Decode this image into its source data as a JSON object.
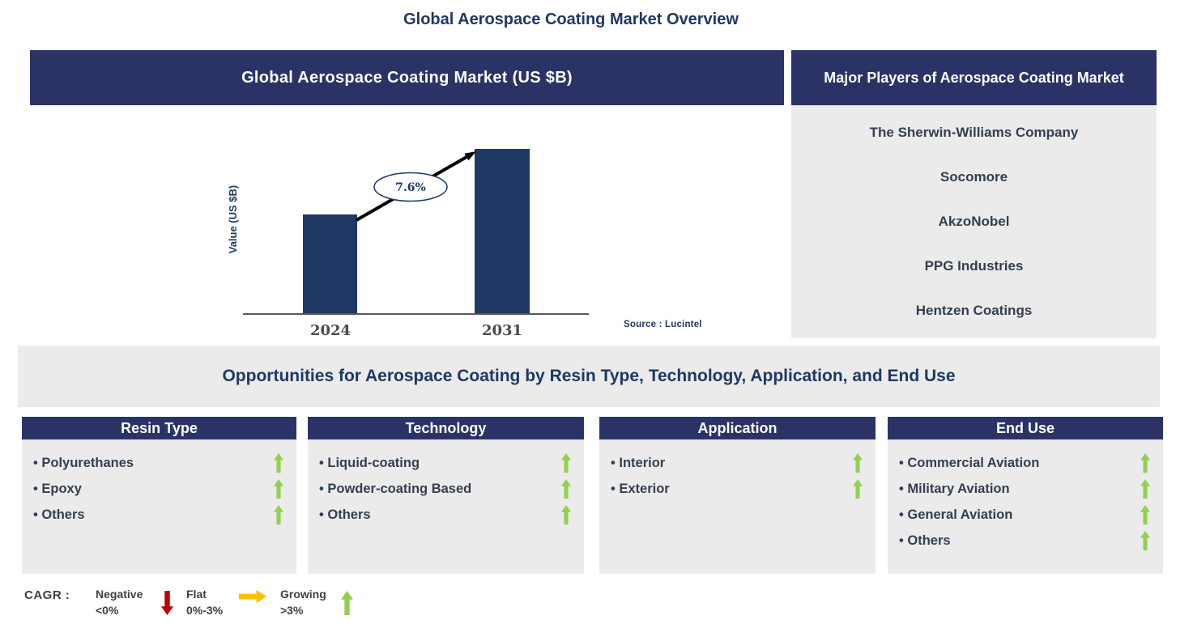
{
  "page_title": "Global Aerospace Coating Market Overview",
  "colors": {
    "header_navy": "#2B3366",
    "bar_navy": "#1F3864",
    "panel_gray": "#EBEBEB",
    "text_slate": "#333F50",
    "growing_green": "#92D050",
    "negative_red": "#C00000",
    "flat_amber": "#FFC000"
  },
  "chart_panel": {
    "header": "Global Aerospace Coating Market (US $B)",
    "source": "Source : Lucintel"
  },
  "chart_data": {
    "type": "bar",
    "title": "Global Aerospace Coating Market (US $B)",
    "categories": [
      "2024",
      "2031"
    ],
    "values": [
      0.6,
      1.0
    ],
    "units": "relative height (value axis unlabeled)",
    "ylabel": "Value (US $B)",
    "xlabel": "",
    "grid": false,
    "bar_color": "#1F3864",
    "cagr_label": "7.6%",
    "annotation": "CAGR arrow from 2024 bar to 2031 bar"
  },
  "players_panel": {
    "header": "Major Players of Aerospace Coating Market",
    "players": [
      "The Sherwin-Williams Company",
      "Socomore",
      "AkzoNobel",
      "PPG Industries",
      "Hentzen Coatings"
    ]
  },
  "opportunities": {
    "banner": "Opportunities for Aerospace Coating by Resin Type, Technology, Application, and End Use",
    "columns": [
      {
        "title": "Resin Type",
        "items": [
          {
            "label": "Polyurethanes",
            "trend": "growing"
          },
          {
            "label": "Epoxy",
            "trend": "growing"
          },
          {
            "label": "Others",
            "trend": "growing"
          }
        ]
      },
      {
        "title": "Technology",
        "items": [
          {
            "label": "Liquid-coating",
            "trend": "growing"
          },
          {
            "label": "Powder-coating Based",
            "trend": "growing"
          },
          {
            "label": "Others",
            "trend": "growing"
          }
        ]
      },
      {
        "title": "Application",
        "items": [
          {
            "label": "Interior",
            "trend": "growing"
          },
          {
            "label": "Exterior",
            "trend": "growing"
          }
        ]
      },
      {
        "title": "End Use",
        "items": [
          {
            "label": "Commercial Aviation",
            "trend": "growing"
          },
          {
            "label": "Military Aviation",
            "trend": "growing"
          },
          {
            "label": "General Aviation",
            "trend": "growing"
          },
          {
            "label": "Others",
            "trend": "growing"
          }
        ]
      }
    ]
  },
  "legend": {
    "prefix": "CAGR :",
    "entries": [
      {
        "label": "Negative",
        "range": "<0%",
        "direction": "down",
        "color": "#C00000"
      },
      {
        "label": "Flat",
        "range": "0%-3%",
        "direction": "right",
        "color": "#FFC000"
      },
      {
        "label": "Growing",
        "range": ">3%",
        "direction": "up",
        "color": "#92D050"
      }
    ]
  }
}
